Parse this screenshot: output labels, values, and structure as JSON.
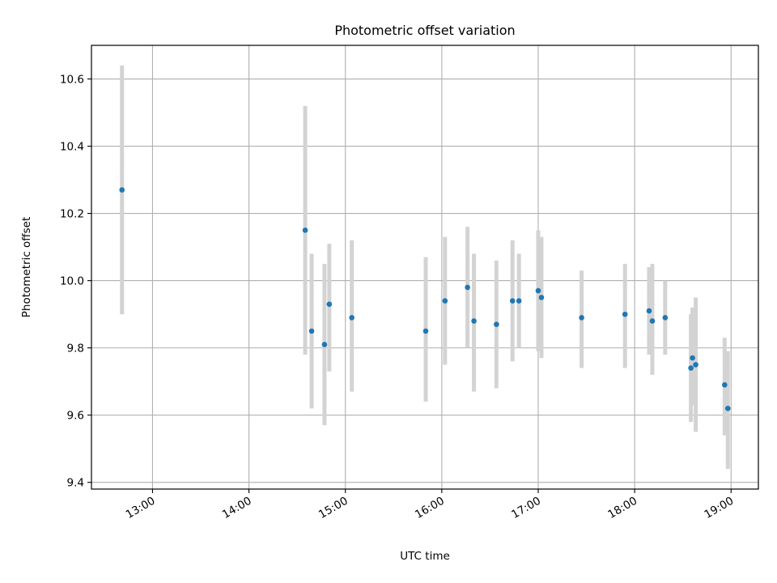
{
  "chart_data": {
    "type": "scatter",
    "title": "Photometric offset variation",
    "xlabel": "UTC time",
    "ylabel": "Photometric offset",
    "xlim": [
      "12:22",
      "19:17"
    ],
    "ylim": [
      9.38,
      10.7
    ],
    "x_ticks": [
      "13:00",
      "14:00",
      "15:00",
      "16:00",
      "17:00",
      "18:00",
      "19:00"
    ],
    "y_ticks": [
      "9.4",
      "9.6",
      "9.8",
      "10.0",
      "10.2",
      "10.4",
      "10.6"
    ],
    "grid": true,
    "colors": {
      "points": "#1f77b4",
      "error_bars": "#d3d3d3",
      "grid": "#b0b0b0"
    },
    "points": [
      {
        "x": "12:41",
        "y": 10.27,
        "err": [
          9.9,
          10.64
        ]
      },
      {
        "x": "14:35",
        "y": 10.15,
        "err": [
          9.78,
          10.52
        ]
      },
      {
        "x": "14:39",
        "y": 9.85,
        "err": [
          9.62,
          10.08
        ]
      },
      {
        "x": "14:47",
        "y": 9.81,
        "err": [
          9.57,
          10.05
        ]
      },
      {
        "x": "14:50",
        "y": 9.93,
        "err": [
          9.73,
          10.11
        ]
      },
      {
        "x": "15:04",
        "y": 9.89,
        "err": [
          9.67,
          10.12
        ]
      },
      {
        "x": "15:50",
        "y": 9.85,
        "err": [
          9.64,
          10.07
        ]
      },
      {
        "x": "16:02",
        "y": 9.94,
        "err": [
          9.75,
          10.13
        ]
      },
      {
        "x": "16:16",
        "y": 9.98,
        "err": [
          9.8,
          10.16
        ]
      },
      {
        "x": "16:20",
        "y": 9.88,
        "err": [
          9.67,
          10.08
        ]
      },
      {
        "x": "16:34",
        "y": 9.87,
        "err": [
          9.68,
          10.06
        ]
      },
      {
        "x": "16:44",
        "y": 9.94,
        "err": [
          9.76,
          10.12
        ]
      },
      {
        "x": "16:48",
        "y": 9.94,
        "err": [
          9.8,
          10.08
        ]
      },
      {
        "x": "17:00",
        "y": 9.97,
        "err": [
          9.79,
          10.15
        ]
      },
      {
        "x": "17:02",
        "y": 9.95,
        "err": [
          9.77,
          10.13
        ]
      },
      {
        "x": "17:27",
        "y": 9.89,
        "err": [
          9.74,
          10.03
        ]
      },
      {
        "x": "17:54",
        "y": 9.9,
        "err": [
          9.74,
          10.05
        ]
      },
      {
        "x": "18:09",
        "y": 9.91,
        "err": [
          9.78,
          10.04
        ]
      },
      {
        "x": "18:11",
        "y": 9.88,
        "err": [
          9.72,
          10.05
        ]
      },
      {
        "x": "18:19",
        "y": 9.89,
        "err": [
          9.78,
          10.0
        ]
      },
      {
        "x": "18:35",
        "y": 9.74,
        "err": [
          9.58,
          9.9
        ]
      },
      {
        "x": "18:36",
        "y": 9.77,
        "err": [
          9.63,
          9.92
        ]
      },
      {
        "x": "18:38",
        "y": 9.75,
        "err": [
          9.55,
          9.95
        ]
      },
      {
        "x": "18:56",
        "y": 9.69,
        "err": [
          9.54,
          9.83
        ]
      },
      {
        "x": "18:58",
        "y": 9.62,
        "err": [
          9.44,
          9.79
        ]
      }
    ]
  }
}
